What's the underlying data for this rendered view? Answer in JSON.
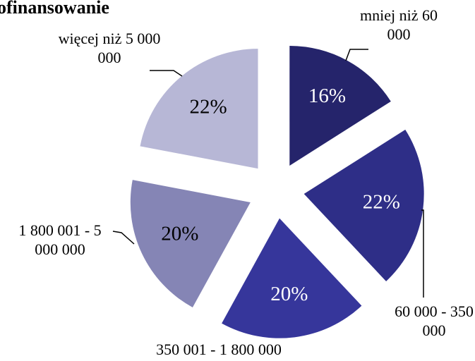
{
  "chart_data": {
    "type": "pie",
    "title": "ofinansowanie",
    "categories": [
      "mniej niż 60 000",
      "60 000 - 350 000",
      "350 001 - 1 800 000",
      "1 800 001 - 5 000 000",
      "więcej niż 5 000 000"
    ],
    "values": [
      16,
      22,
      20,
      20,
      22
    ],
    "value_labels": [
      "16%",
      "22%",
      "20%",
      "20%",
      "22%"
    ],
    "colors": [
      "#25246b",
      "#2e2e87",
      "#36369b",
      "#8585b5",
      "#b7b7d6"
    ]
  }
}
